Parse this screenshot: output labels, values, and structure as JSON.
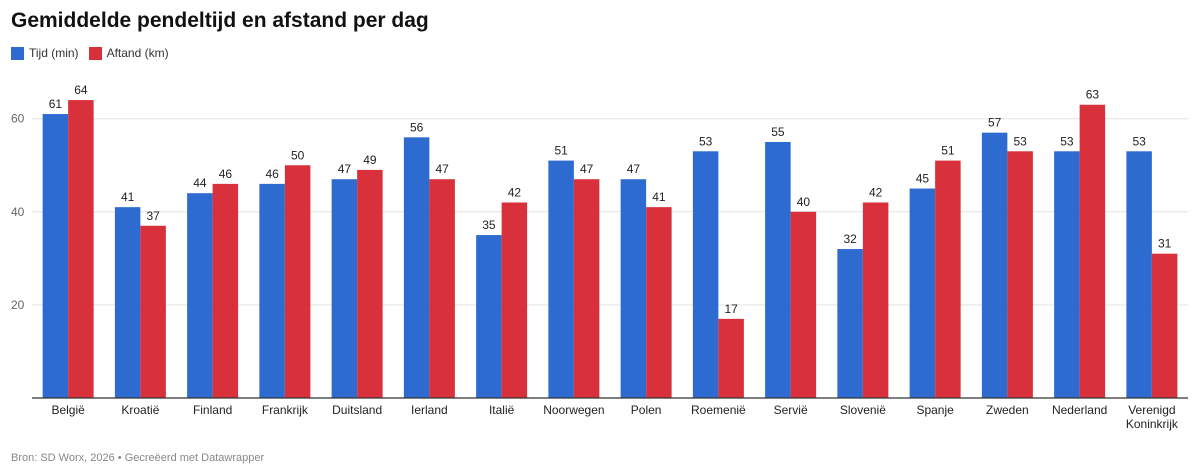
{
  "title": "Gemiddelde pendeltijd en afstand per dag",
  "footer": {
    "source": "Bron: SD Worx, 2026",
    "separator": "•",
    "credit": "Gecreëerd met Datawrapper"
  },
  "colors": {
    "series1": "#2e6bd1",
    "series2": "#d9313c",
    "grid": "#e3e3e3",
    "axis": "#333333"
  },
  "chart_data": {
    "type": "bar",
    "title": "Gemiddelde pendeltijd en afstand per dag",
    "xlabel": "",
    "ylabel": "",
    "ylim": [
      0,
      68
    ],
    "yticks": [
      20,
      40,
      60
    ],
    "grid": true,
    "legend_position": "top-left",
    "categories": [
      [
        "België"
      ],
      [
        "Kroatië"
      ],
      [
        "Finland"
      ],
      [
        "Frankrijk"
      ],
      [
        "Duitsland"
      ],
      [
        "Ierland"
      ],
      [
        "Italië"
      ],
      [
        "Noorwegen"
      ],
      [
        "Polen"
      ],
      [
        "Roemenië"
      ],
      [
        "Servië"
      ],
      [
        "Slovenië"
      ],
      [
        "Spanje"
      ],
      [
        "Zweden"
      ],
      [
        "Nederland"
      ],
      [
        "Verenigd",
        "Koninkrijk"
      ]
    ],
    "series": [
      {
        "name": "Tijd (min)",
        "values": [
          61,
          41,
          44,
          46,
          47,
          56,
          35,
          51,
          47,
          53,
          55,
          32,
          45,
          57,
          53,
          53
        ]
      },
      {
        "name": "Aftand (km)",
        "values": [
          64,
          37,
          46,
          50,
          49,
          47,
          42,
          47,
          41,
          17,
          40,
          42,
          51,
          53,
          63,
          31
        ]
      }
    ]
  }
}
